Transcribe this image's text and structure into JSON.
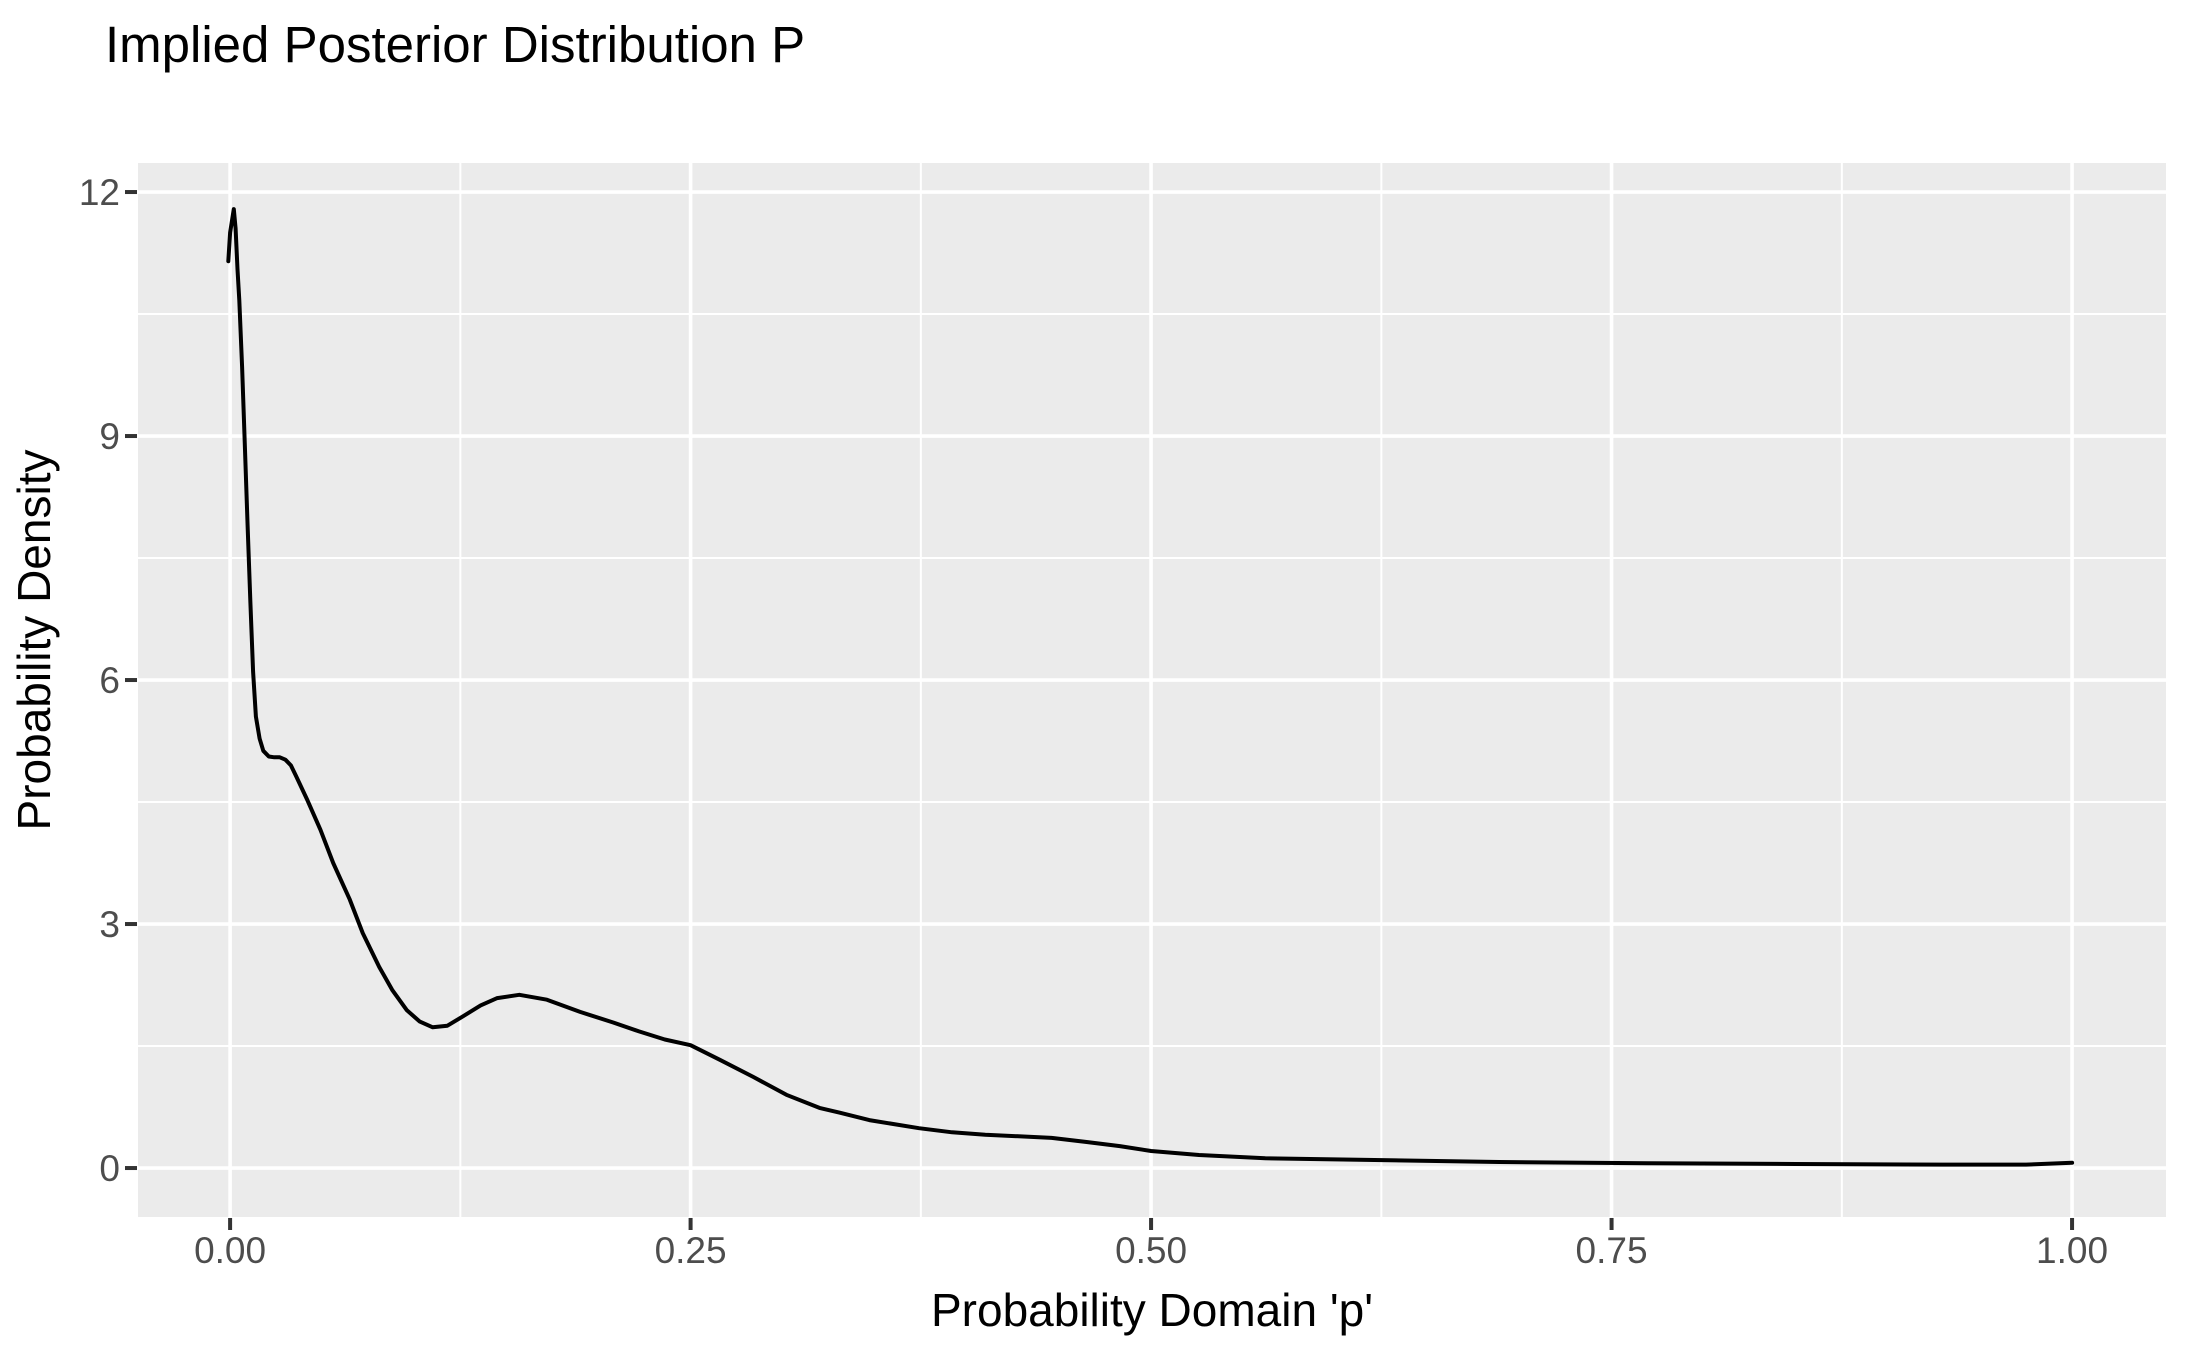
{
  "chart_data": {
    "type": "line",
    "subtype": "density-curve",
    "title": "Implied Posterior Distribution P",
    "xlabel": "Probability Domain 'p'",
    "ylabel": "Probability Density",
    "legend": "none",
    "grid": true,
    "xlim": [
      -0.05,
      1.051
    ],
    "ylim": [
      -0.602,
      12.357
    ],
    "x_ticks": [
      {
        "label": "0.00",
        "value": 0.0
      },
      {
        "label": "0.25",
        "value": 0.25
      },
      {
        "label": "0.50",
        "value": 0.5
      },
      {
        "label": "0.75",
        "value": 0.75
      },
      {
        "label": "1.00",
        "value": 1.0
      }
    ],
    "y_ticks": [
      {
        "label": "0",
        "value": 0
      },
      {
        "label": "3",
        "value": 3
      },
      {
        "label": "6",
        "value": 6
      },
      {
        "label": "9",
        "value": 9
      },
      {
        "label": "12",
        "value": 12
      }
    ],
    "x_minor_ticks": [
      0.125,
      0.375,
      0.625,
      0.875
    ],
    "y_minor_ticks": [
      1.5,
      4.5,
      7.5,
      10.5
    ],
    "series": [
      {
        "name": "posterior-density",
        "points": [
          [
            -0.001,
            11.15
          ],
          [
            0.0,
            11.5
          ],
          [
            0.002,
            11.79
          ],
          [
            0.003,
            11.55
          ],
          [
            0.004,
            11.05
          ],
          [
            0.005,
            10.67
          ],
          [
            0.0065,
            9.85
          ],
          [
            0.008,
            8.9
          ],
          [
            0.0095,
            7.9
          ],
          [
            0.011,
            6.95
          ],
          [
            0.0125,
            6.1
          ],
          [
            0.014,
            5.55
          ],
          [
            0.016,
            5.28
          ],
          [
            0.018,
            5.13
          ],
          [
            0.021,
            5.06
          ],
          [
            0.024,
            5.05
          ],
          [
            0.027,
            5.05
          ],
          [
            0.03,
            5.02
          ],
          [
            0.033,
            4.95
          ],
          [
            0.036,
            4.81
          ],
          [
            0.042,
            4.52
          ],
          [
            0.049,
            4.16
          ],
          [
            0.056,
            3.75
          ],
          [
            0.065,
            3.3
          ],
          [
            0.072,
            2.89
          ],
          [
            0.081,
            2.47
          ],
          [
            0.088,
            2.19
          ],
          [
            0.096,
            1.94
          ],
          [
            0.103,
            1.8
          ],
          [
            0.11,
            1.73
          ],
          [
            0.118,
            1.75
          ],
          [
            0.126,
            1.86
          ],
          [
            0.136,
            2.0
          ],
          [
            0.145,
            2.09
          ],
          [
            0.157,
            2.13
          ],
          [
            0.172,
            2.07
          ],
          [
            0.19,
            1.92
          ],
          [
            0.208,
            1.79
          ],
          [
            0.222,
            1.68
          ],
          [
            0.236,
            1.58
          ],
          [
            0.25,
            1.51
          ],
          [
            0.266,
            1.33
          ],
          [
            0.284,
            1.12
          ],
          [
            0.302,
            0.9
          ],
          [
            0.32,
            0.74
          ],
          [
            0.331,
            0.68
          ],
          [
            0.347,
            0.59
          ],
          [
            0.374,
            0.49
          ],
          [
            0.392,
            0.44
          ],
          [
            0.41,
            0.41
          ],
          [
            0.428,
            0.39
          ],
          [
            0.446,
            0.37
          ],
          [
            0.465,
            0.32
          ],
          [
            0.483,
            0.27
          ],
          [
            0.5,
            0.21
          ],
          [
            0.526,
            0.16
          ],
          [
            0.562,
            0.12
          ],
          [
            0.617,
            0.1
          ],
          [
            0.689,
            0.074
          ],
          [
            0.77,
            0.06
          ],
          [
            0.85,
            0.05
          ],
          [
            0.93,
            0.042
          ],
          [
            0.975,
            0.042
          ],
          [
            1.0,
            0.065
          ]
        ]
      }
    ],
    "colors": {
      "curve": "#000000",
      "panel_background": "#EBEBEB",
      "gridline": "#FFFFFF",
      "tick_mark": "#333333",
      "tick_label": "#4D4D4D",
      "title_text": "#000000",
      "page_background": "#FFFFFF"
    }
  }
}
